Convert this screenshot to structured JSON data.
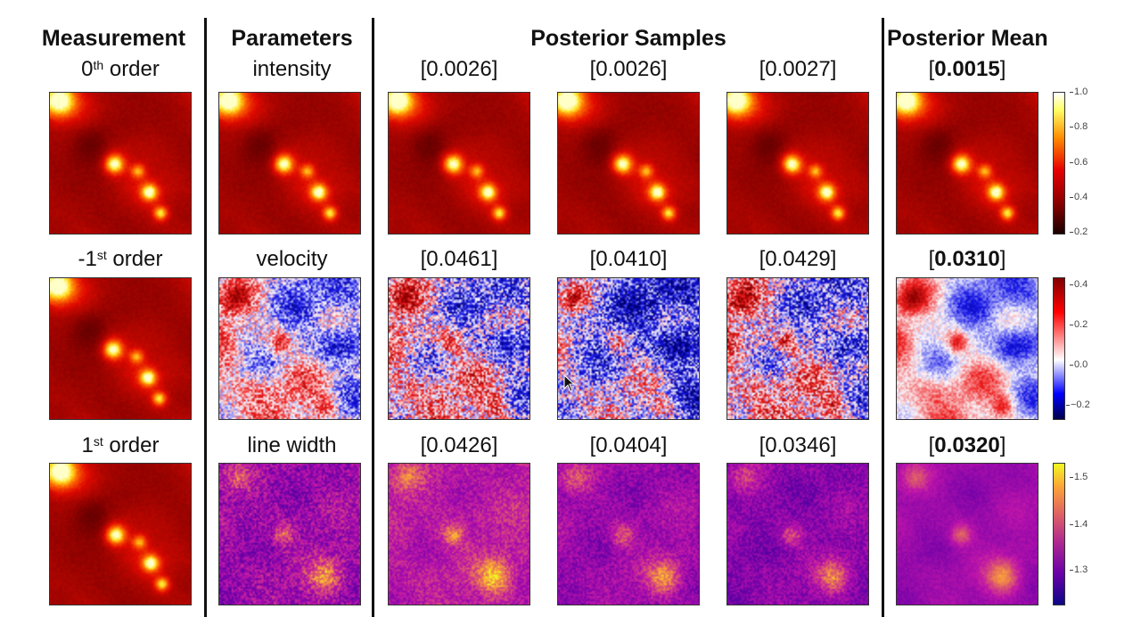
{
  "headers": {
    "measurement": "Measurement",
    "parameters": "Parameters",
    "posterior_samples": "Posterior Samples",
    "posterior_mean": "Posterior Mean"
  },
  "rows": [
    {
      "measurement": {
        "prefix": "0",
        "sup": "th",
        "suffix": " order"
      },
      "parameter": "intensity",
      "samples": [
        "[0.0026]",
        "[0.0026]",
        "[0.0027]"
      ],
      "mean": {
        "open": "[",
        "value": "0.0015",
        "close": "]"
      },
      "colormap": "hot",
      "colorbar_ticks": [
        "1.0",
        "0.8",
        "0.6",
        "0.4",
        "0.2"
      ]
    },
    {
      "measurement": {
        "prefix": "-1",
        "sup": "st",
        "suffix": " order"
      },
      "parameter": "velocity",
      "samples": [
        "[0.0461]",
        "[0.0410]",
        "[0.0429]"
      ],
      "mean": {
        "open": "[",
        "value": "0.0310",
        "close": "]"
      },
      "colormap": "seismic",
      "colorbar_ticks": [
        "0.4",
        "0.2",
        "0.0",
        "−0.2"
      ]
    },
    {
      "measurement": {
        "prefix": "1",
        "sup": "st",
        "suffix": " order"
      },
      "parameter": "line width",
      "samples": [
        "[0.0426]",
        "[0.0404]",
        "[0.0346]"
      ],
      "mean": {
        "open": "[",
        "value": "0.0320",
        "close": "]"
      },
      "colormap": "plasma",
      "colorbar_ticks": [
        "1.5",
        "1.4",
        "1.3"
      ]
    }
  ],
  "colors": {
    "hot_dark": "#1a0000",
    "hot_mid": "#e60000",
    "hot_light": "#ffff66",
    "seismic_blue": "#0000c8",
    "seismic_white": "#ffffff",
    "seismic_red": "#c80000",
    "plasma_low": "#3c0096",
    "plasma_mid": "#c800b4",
    "plasma_high": "#ffe632"
  }
}
